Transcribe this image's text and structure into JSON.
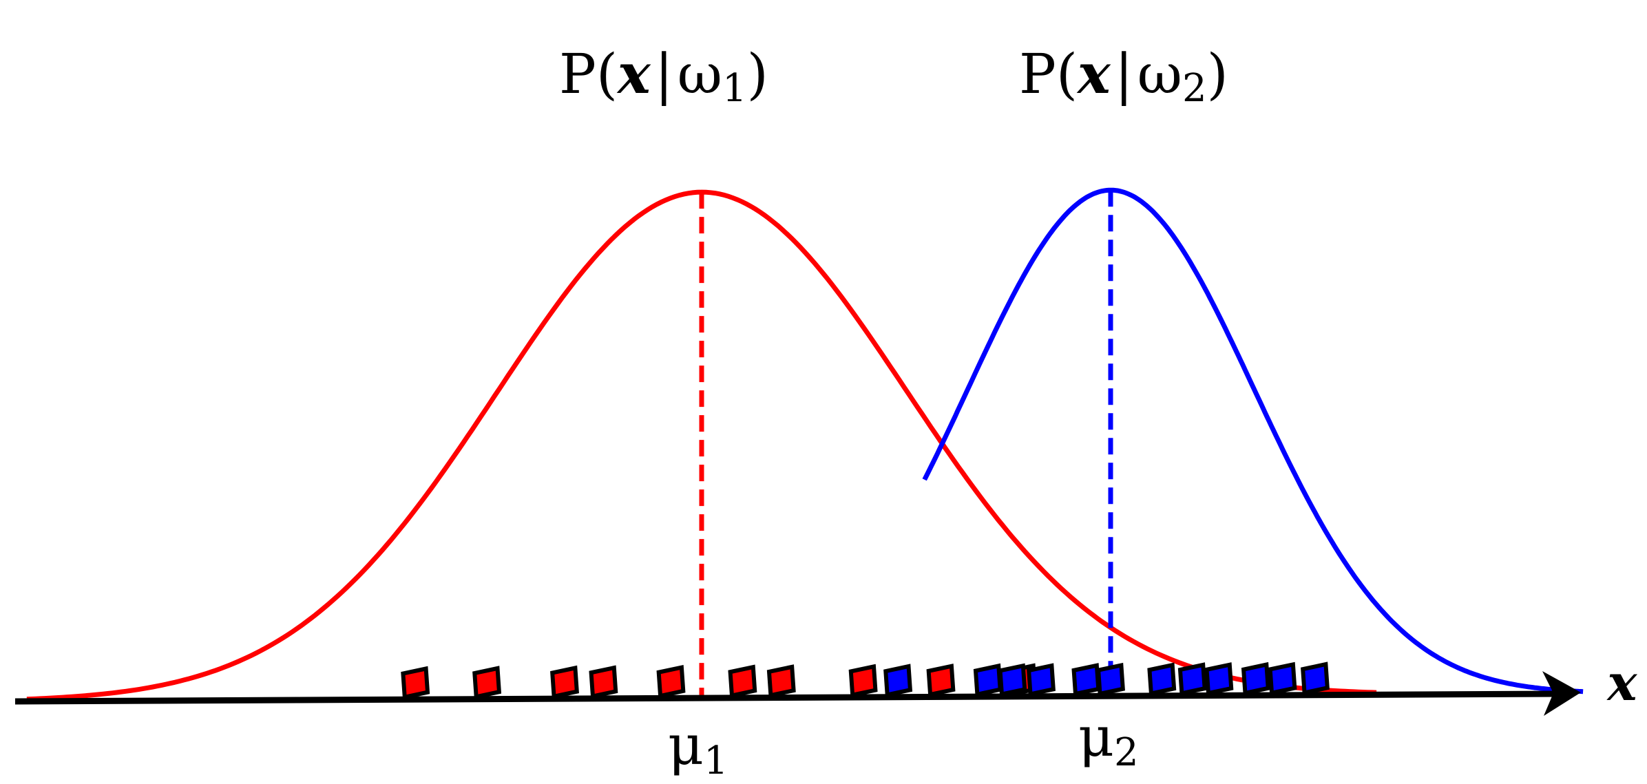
{
  "curve_labels": {
    "class1": {
      "P": "P(",
      "x": "x",
      "bar": "|",
      "omega": "ω",
      "sub": "1",
      "close": ")"
    },
    "class2": {
      "P": "P(",
      "x": "x",
      "bar": "|",
      "omega": "ω",
      "sub": "2",
      "close": ")"
    }
  },
  "mean_labels": {
    "mu1": {
      "mu": "μ",
      "sub": "1"
    },
    "mu2": {
      "mu": "μ",
      "sub": "2"
    }
  },
  "axis": {
    "label": "x"
  },
  "chart_data": {
    "type": "line",
    "distributions": [
      {
        "class": "ω1",
        "mean": 0.0,
        "std": 1.0,
        "peak": 1.0,
        "color": "#ff0000"
      },
      {
        "class": "ω2",
        "mean": 2.0,
        "std": 0.7,
        "peak": 1.0,
        "color": "#0000ff"
      }
    ],
    "samples": {
      "class1": {
        "color": "#ff0000",
        "x": [
          -1.4,
          -1.05,
          -0.67,
          -0.48,
          -0.15,
          0.2,
          0.39,
          0.79,
          1.17,
          1.57
        ]
      },
      "class2": {
        "color": "#0000ff",
        "x": [
          0.96,
          1.4,
          1.52,
          1.66,
          1.88,
          2.0,
          2.25,
          2.4,
          2.53,
          2.71,
          2.84,
          3.0
        ]
      }
    },
    "colors": {
      "axis": "#000000",
      "class1": "#ff0000",
      "class2": "#0000ff",
      "sample_outline": "#000000"
    }
  }
}
